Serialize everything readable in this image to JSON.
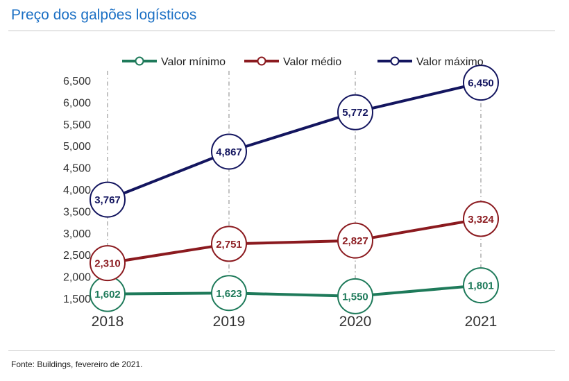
{
  "page": {
    "title": "Preço dos galpões logísticos",
    "source": "Fonte: Buildings, fevereiro de 2021."
  },
  "chart_data": {
    "type": "line",
    "title": "Preço dos galpões logísticos",
    "xlabel": "",
    "ylabel": "",
    "categories": [
      "2018",
      "2019",
      "2020",
      "2021"
    ],
    "ylim": [
      1500,
      6500
    ],
    "yticks": [
      1500,
      2000,
      2500,
      3000,
      3500,
      4000,
      4500,
      5000,
      5500,
      6000,
      6500
    ],
    "ytick_labels": [
      "1,500",
      "2,000",
      "2,500",
      "3,000",
      "3,500",
      "4,000",
      "4,500",
      "5,000",
      "5,500",
      "6,000",
      "6,500"
    ],
    "grid": "vertical dashed",
    "legend_position": "top",
    "series": [
      {
        "name": "Valor mínimo",
        "color": "#1e7a5a",
        "values": [
          1602,
          1623,
          1550,
          1801
        ],
        "labels": [
          "1,602",
          "1,623",
          "1,550",
          "1,801"
        ]
      },
      {
        "name": "Valor médio",
        "color": "#8b1a1f",
        "values": [
          2310,
          2751,
          2827,
          3324
        ],
        "labels": [
          "2,310",
          "2,751",
          "2,827",
          "3,324"
        ]
      },
      {
        "name": "Valor máximo",
        "color": "#13155f",
        "values": [
          3767,
          4867,
          5772,
          6450
        ],
        "labels": [
          "3,767",
          "4,867",
          "5,772",
          "6,450"
        ]
      }
    ]
  }
}
